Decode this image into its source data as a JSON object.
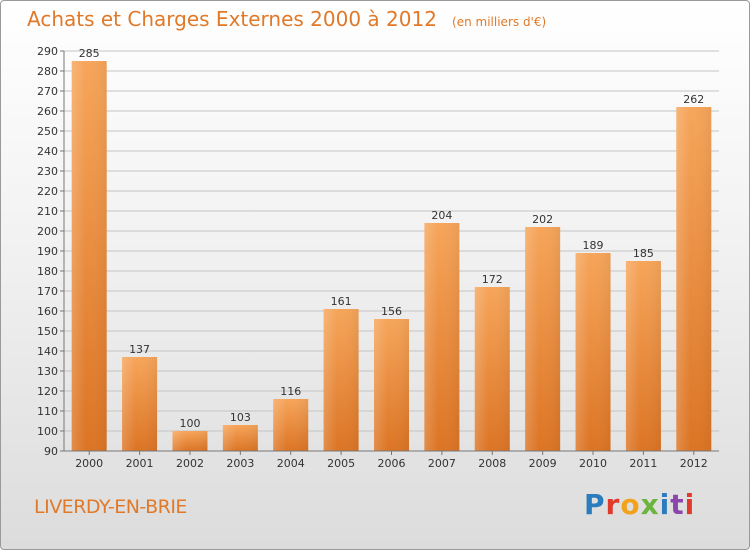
{
  "header": {
    "title": "Achats et Charges Externes 2000 à 2012",
    "unit": "(en milliers d'€)"
  },
  "footer": {
    "city": "LIVERDY-EN-BRIE",
    "brand": "Proxiti",
    "brand_colors": [
      "#2b7bbf",
      "#e03a2c",
      "#f2a21b",
      "#6db33f",
      "#2b7bbf",
      "#8e44ad",
      "#e03a2c"
    ]
  },
  "chart_data": {
    "type": "bar",
    "title": "Achats et Charges Externes 2000 à 2012",
    "subtitle": "(en milliers d'€)",
    "xlabel": "",
    "ylabel": "",
    "categories": [
      "2000",
      "2001",
      "2002",
      "2003",
      "2004",
      "2005",
      "2006",
      "2007",
      "2008",
      "2009",
      "2010",
      "2011",
      "2012"
    ],
    "values": [
      285,
      137,
      100,
      103,
      116,
      161,
      156,
      204,
      172,
      202,
      189,
      185,
      262
    ],
    "ylim": [
      90,
      290
    ],
    "yticks": [
      90,
      100,
      110,
      120,
      130,
      140,
      150,
      160,
      170,
      180,
      190,
      200,
      210,
      220,
      230,
      240,
      250,
      260,
      270,
      280,
      290
    ],
    "grid": true,
    "legend": "none",
    "bar_color": "#f0923c"
  }
}
